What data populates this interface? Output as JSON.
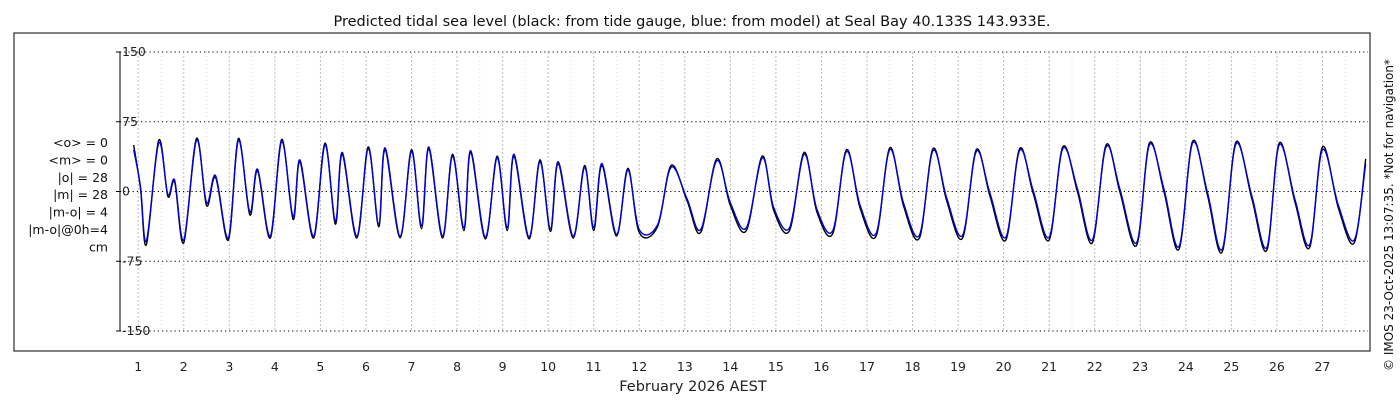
{
  "chart_data": {
    "type": "line",
    "title": "Predicted tidal sea level (black: from tide gauge, blue: from model) at Seal Bay 40.133S 143.933E.",
    "xlabel": "February 2026 AEST",
    "ylabel": "",
    "x_ticks": [
      "1",
      "2",
      "3",
      "4",
      "5",
      "6",
      "7",
      "8",
      "9",
      "10",
      "11",
      "12",
      "13",
      "14",
      "15",
      "16",
      "17",
      "18",
      "19",
      "20",
      "21",
      "22",
      "23",
      "24",
      "25",
      "26",
      "27"
    ],
    "y_ticks": [
      "150",
      "75",
      "0",
      "-75",
      "-150"
    ],
    "y_tick_values": [
      150,
      75,
      0,
      -75,
      -150
    ],
    "ylim": [
      -150,
      150
    ],
    "xlim": [
      0.6,
      28.0
    ],
    "grid": true,
    "stats": [
      "<o> = 0",
      "<m> = 0",
      "|o| = 28",
      "|m| = 28",
      "|m-o| = 4",
      "|m-o|@0h=4",
      "cm"
    ],
    "credit": "© IMOS 23-Oct-2025 13:07:35. *Not for navigation*",
    "series": [
      {
        "color": "#000000",
        "values": [
          [
            0.9,
            50
          ],
          [
            1.05,
            3
          ],
          [
            1.18,
            -57
          ],
          [
            1.45,
            55
          ],
          [
            1.65,
            -5
          ],
          [
            1.8,
            10
          ],
          [
            2.0,
            -55
          ],
          [
            2.28,
            57
          ],
          [
            2.5,
            -15
          ],
          [
            2.7,
            15
          ],
          [
            2.98,
            -52
          ],
          [
            3.2,
            57
          ],
          [
            3.45,
            -25
          ],
          [
            3.62,
            22
          ],
          [
            3.9,
            -50
          ],
          [
            4.15,
            56
          ],
          [
            4.4,
            -30
          ],
          [
            4.55,
            32
          ],
          [
            4.85,
            -50
          ],
          [
            5.1,
            52
          ],
          [
            5.33,
            -35
          ],
          [
            5.48,
            40
          ],
          [
            5.8,
            -50
          ],
          [
            6.05,
            48
          ],
          [
            6.28,
            -38
          ],
          [
            6.42,
            45
          ],
          [
            6.75,
            -50
          ],
          [
            7.0,
            45
          ],
          [
            7.22,
            -40
          ],
          [
            7.38,
            46
          ],
          [
            7.68,
            -50
          ],
          [
            7.9,
            40
          ],
          [
            8.15,
            -42
          ],
          [
            8.3,
            42
          ],
          [
            8.62,
            -51
          ],
          [
            8.88,
            38
          ],
          [
            9.1,
            -42
          ],
          [
            9.25,
            38
          ],
          [
            9.58,
            -51
          ],
          [
            9.82,
            34
          ],
          [
            10.05,
            -43
          ],
          [
            10.22,
            30
          ],
          [
            10.55,
            -50
          ],
          [
            10.8,
            28
          ],
          [
            11.0,
            -42
          ],
          [
            11.18,
            28
          ],
          [
            11.5,
            -48
          ],
          [
            11.75,
            25
          ],
          [
            12.0,
            -44
          ],
          [
            12.4,
            -38
          ],
          [
            12.7,
            28
          ],
          [
            13.05,
            -10
          ],
          [
            13.35,
            -44
          ],
          [
            13.7,
            35
          ],
          [
            14.0,
            -15
          ],
          [
            14.35,
            -42
          ],
          [
            14.7,
            38
          ],
          [
            14.95,
            -20
          ],
          [
            15.3,
            -42
          ],
          [
            15.62,
            42
          ],
          [
            15.9,
            -22
          ],
          [
            16.25,
            -45
          ],
          [
            16.55,
            45
          ],
          [
            16.85,
            -18
          ],
          [
            17.2,
            -48
          ],
          [
            17.5,
            47
          ],
          [
            17.8,
            -15
          ],
          [
            18.15,
            -50
          ],
          [
            18.45,
            46
          ],
          [
            18.75,
            -10
          ],
          [
            19.1,
            -50
          ],
          [
            19.4,
            45
          ],
          [
            19.7,
            -5
          ],
          [
            20.05,
            -52
          ],
          [
            20.35,
            46
          ],
          [
            20.65,
            -2
          ],
          [
            21.0,
            -52
          ],
          [
            21.3,
            48
          ],
          [
            21.62,
            0
          ],
          [
            21.95,
            -55
          ],
          [
            22.25,
            50
          ],
          [
            22.55,
            0
          ],
          [
            22.92,
            -58
          ],
          [
            23.2,
            52
          ],
          [
            23.52,
            0
          ],
          [
            23.85,
            -62
          ],
          [
            24.15,
            54
          ],
          [
            24.48,
            -5
          ],
          [
            24.8,
            -65
          ],
          [
            25.1,
            53
          ],
          [
            25.45,
            -8
          ],
          [
            25.78,
            -63
          ],
          [
            26.05,
            52
          ],
          [
            26.4,
            -12
          ],
          [
            26.72,
            -60
          ],
          [
            27.0,
            48
          ],
          [
            27.35,
            -18
          ],
          [
            27.7,
            -55
          ],
          [
            27.95,
            35
          ]
        ]
      },
      {
        "color": "#0000dd",
        "values": [
          [
            0.9,
            45
          ],
          [
            1.05,
            5
          ],
          [
            1.18,
            -53
          ],
          [
            1.45,
            52
          ],
          [
            1.65,
            -3
          ],
          [
            1.8,
            12
          ],
          [
            2.0,
            -52
          ],
          [
            2.28,
            55
          ],
          [
            2.5,
            -12
          ],
          [
            2.7,
            17
          ],
          [
            2.98,
            -50
          ],
          [
            3.2,
            55
          ],
          [
            3.45,
            -22
          ],
          [
            3.62,
            24
          ],
          [
            3.9,
            -48
          ],
          [
            4.15,
            54
          ],
          [
            4.4,
            -27
          ],
          [
            4.55,
            34
          ],
          [
            4.85,
            -48
          ],
          [
            5.1,
            50
          ],
          [
            5.33,
            -32
          ],
          [
            5.48,
            42
          ],
          [
            5.8,
            -48
          ],
          [
            6.05,
            46
          ],
          [
            6.28,
            -35
          ],
          [
            6.42,
            47
          ],
          [
            6.75,
            -48
          ],
          [
            7.0,
            43
          ],
          [
            7.22,
            -37
          ],
          [
            7.38,
            48
          ],
          [
            7.68,
            -48
          ],
          [
            7.9,
            38
          ],
          [
            8.15,
            -39
          ],
          [
            8.3,
            44
          ],
          [
            8.62,
            -49
          ],
          [
            8.88,
            36
          ],
          [
            9.1,
            -39
          ],
          [
            9.25,
            40
          ],
          [
            9.58,
            -49
          ],
          [
            9.82,
            32
          ],
          [
            10.05,
            -40
          ],
          [
            10.22,
            32
          ],
          [
            10.55,
            -48
          ],
          [
            10.8,
            26
          ],
          [
            11.0,
            -39
          ],
          [
            11.18,
            30
          ],
          [
            11.5,
            -46
          ],
          [
            11.75,
            23
          ],
          [
            12.0,
            -41
          ],
          [
            12.4,
            -36
          ],
          [
            12.7,
            26
          ],
          [
            13.05,
            -8
          ],
          [
            13.35,
            -41
          ],
          [
            13.7,
            33
          ],
          [
            14.0,
            -12
          ],
          [
            14.35,
            -39
          ],
          [
            14.7,
            36
          ],
          [
            14.95,
            -17
          ],
          [
            15.3,
            -39
          ],
          [
            15.62,
            40
          ],
          [
            15.9,
            -19
          ],
          [
            16.25,
            -42
          ],
          [
            16.55,
            43
          ],
          [
            16.85,
            -15
          ],
          [
            17.2,
            -45
          ],
          [
            17.5,
            45
          ],
          [
            17.8,
            -12
          ],
          [
            18.15,
            -47
          ],
          [
            18.45,
            44
          ],
          [
            18.75,
            -7
          ],
          [
            19.1,
            -47
          ],
          [
            19.4,
            43
          ],
          [
            19.7,
            -2
          ],
          [
            20.05,
            -49
          ],
          [
            20.35,
            44
          ],
          [
            20.65,
            1
          ],
          [
            21.0,
            -49
          ],
          [
            21.3,
            46
          ],
          [
            21.62,
            3
          ],
          [
            21.95,
            -52
          ],
          [
            22.25,
            48
          ],
          [
            22.55,
            3
          ],
          [
            22.92,
            -55
          ],
          [
            23.2,
            50
          ],
          [
            23.52,
            3
          ],
          [
            23.85,
            -59
          ],
          [
            24.15,
            52
          ],
          [
            24.48,
            -2
          ],
          [
            24.8,
            -62
          ],
          [
            25.1,
            51
          ],
          [
            25.45,
            -5
          ],
          [
            25.78,
            -60
          ],
          [
            26.05,
            50
          ],
          [
            26.4,
            -9
          ],
          [
            26.72,
            -57
          ],
          [
            27.0,
            45
          ],
          [
            27.35,
            -15
          ],
          [
            27.7,
            -52
          ],
          [
            27.95,
            30
          ]
        ]
      }
    ]
  }
}
